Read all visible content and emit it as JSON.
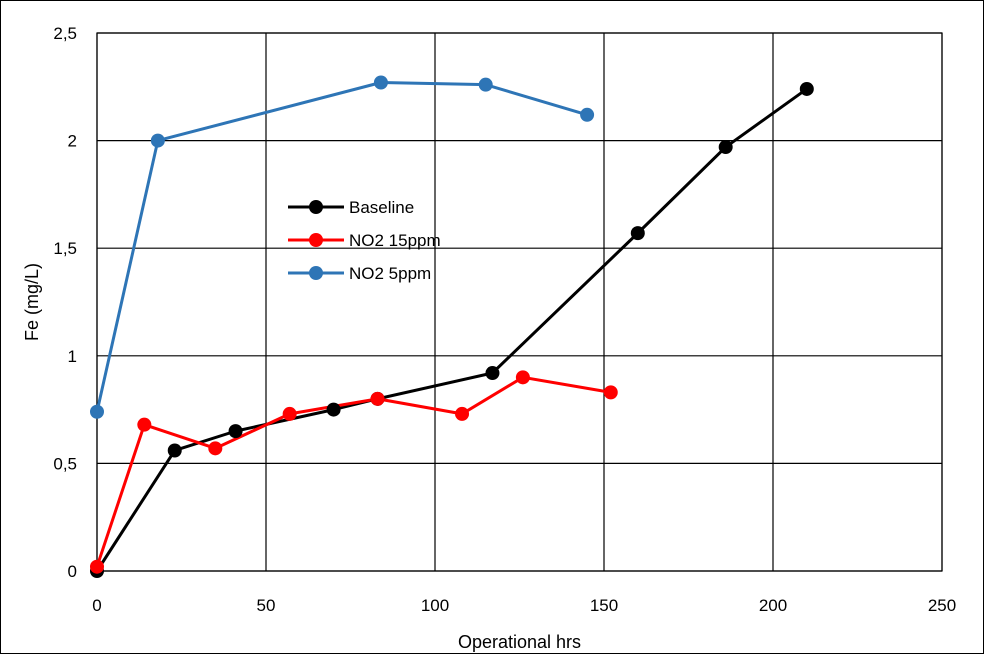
{
  "chart_data": {
    "type": "line",
    "title": "",
    "xlabel": "Operational hrs",
    "ylabel": "Fe (mg/L)",
    "xlim": [
      0,
      250
    ],
    "ylim": [
      0,
      2.5
    ],
    "xticks": [
      0,
      50,
      100,
      150,
      200,
      250
    ],
    "yticks": [
      0,
      0.5,
      1,
      1.5,
      2,
      2.5
    ],
    "xtick_labels": [
      "0",
      "50",
      "100",
      "150",
      "200",
      "250"
    ],
    "ytick_labels": [
      "0",
      "0,5",
      "1",
      "1,5",
      "2",
      "2,5"
    ],
    "grid": true,
    "legend_position": "center-left",
    "series": [
      {
        "name": "Baseline",
        "color": "#000000",
        "x": [
          0,
          23,
          41,
          70,
          83,
          117,
          160,
          186,
          210
        ],
        "y": [
          0.0,
          0.56,
          0.65,
          0.75,
          0.8,
          0.92,
          1.57,
          1.97,
          2.24
        ]
      },
      {
        "name": "NO2 15ppm",
        "color": "#ff0000",
        "x": [
          0,
          14,
          35,
          57,
          83,
          108,
          126,
          152
        ],
        "y": [
          0.02,
          0.68,
          0.57,
          0.73,
          0.8,
          0.73,
          0.9,
          0.83
        ]
      },
      {
        "name": "NO2 5ppm",
        "color": "#2e75b6",
        "x": [
          0,
          18,
          84,
          115,
          145
        ],
        "y": [
          0.74,
          2.0,
          2.27,
          2.26,
          2.12
        ]
      }
    ]
  }
}
